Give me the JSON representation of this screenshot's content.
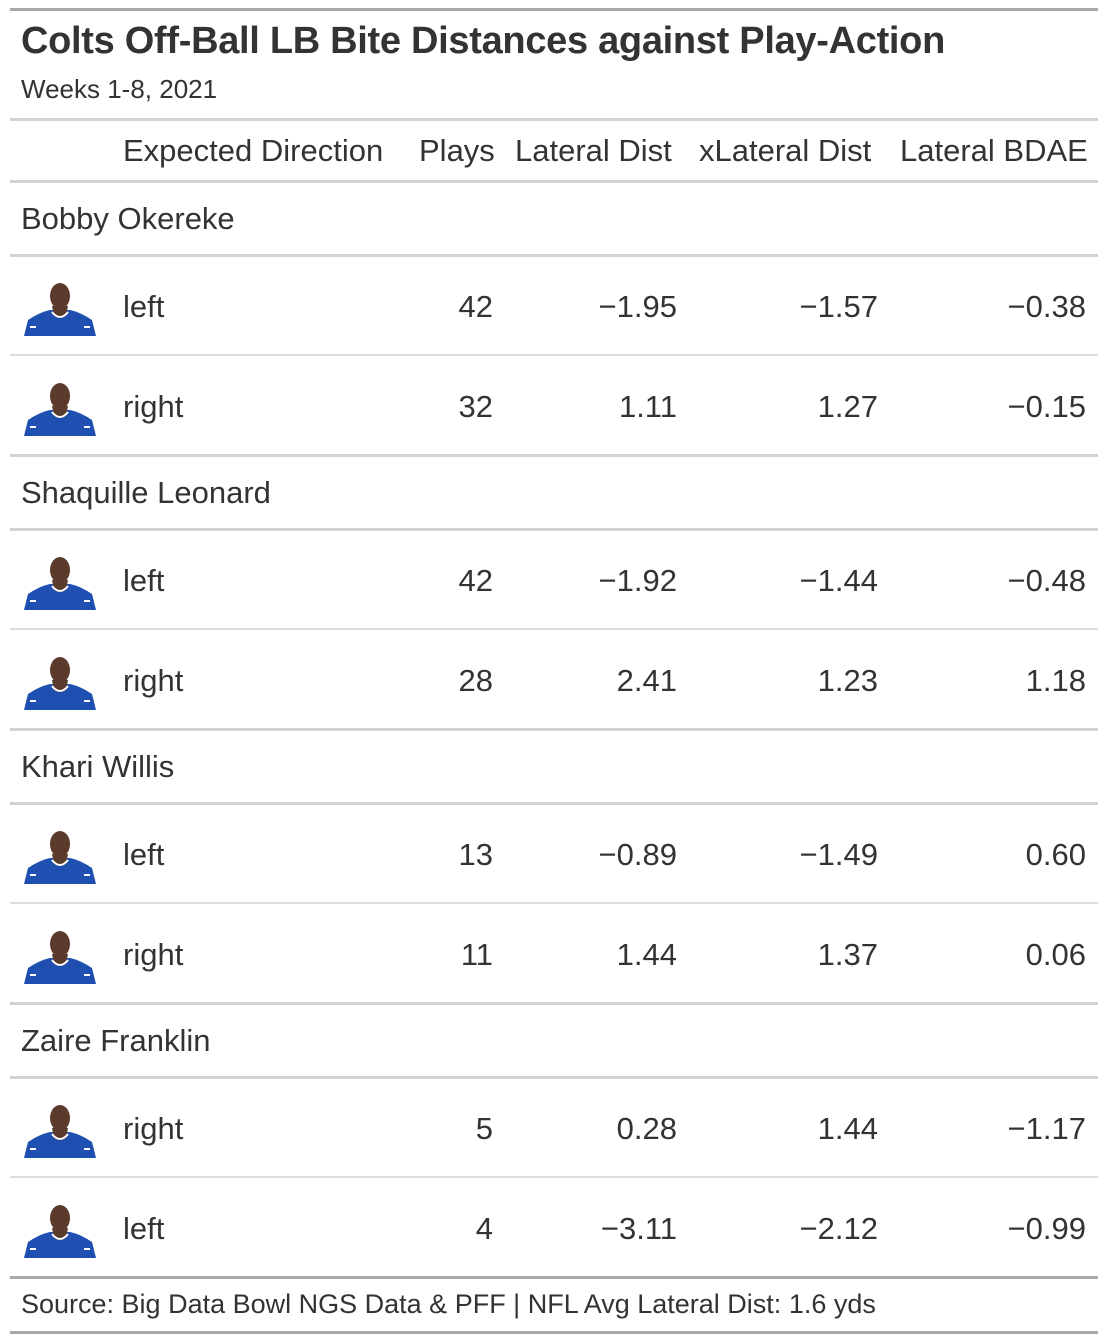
{
  "chart_data": {
    "type": "table",
    "title": "Colts Off-Ball LB Bite Distances against Play-Action",
    "subtitle": "Weeks 1-8, 2021",
    "columns": [
      "Expected Direction",
      "Plays",
      "Lateral Dist",
      "xLateral Dist",
      "Lateral BDAE"
    ],
    "groups": [
      {
        "player": "Bobby Okereke",
        "rows": [
          {
            "direction": "left",
            "plays": "42",
            "lateral": "−1.95",
            "xlateral": "−1.57",
            "bdae": "−0.38"
          },
          {
            "direction": "right",
            "plays": "32",
            "lateral": "1.11",
            "xlateral": "1.27",
            "bdae": "−0.15"
          }
        ]
      },
      {
        "player": "Shaquille Leonard",
        "rows": [
          {
            "direction": "left",
            "plays": "42",
            "lateral": "−1.92",
            "xlateral": "−1.44",
            "bdae": "−0.48"
          },
          {
            "direction": "right",
            "plays": "28",
            "lateral": "2.41",
            "xlateral": "1.23",
            "bdae": "1.18"
          }
        ]
      },
      {
        "player": "Khari Willis",
        "rows": [
          {
            "direction": "left",
            "plays": "13",
            "lateral": "−0.89",
            "xlateral": "−1.49",
            "bdae": "0.60"
          },
          {
            "direction": "right",
            "plays": "11",
            "lateral": "1.44",
            "xlateral": "1.37",
            "bdae": "0.06"
          }
        ]
      },
      {
        "player": "Zaire Franklin",
        "rows": [
          {
            "direction": "right",
            "plays": "5",
            "lateral": "0.28",
            "xlateral": "1.44",
            "bdae": "−1.17"
          },
          {
            "direction": "left",
            "plays": "4",
            "lateral": "−3.11",
            "xlateral": "−2.12",
            "bdae": "−0.99"
          }
        ]
      }
    ],
    "source_note": "Source: Big Data Bowl NGS Data & PFF | NFL Avg Lateral Dist: 1.6 yds"
  },
  "colors": {
    "text": "#333333",
    "rule": "#d3d3d3",
    "rule_dark": "#a8a8a8",
    "jersey_blue": "#1f4fb0",
    "skin": "#5a3a2a"
  },
  "icons": {
    "player_headshot": "player-headshot-icon"
  }
}
